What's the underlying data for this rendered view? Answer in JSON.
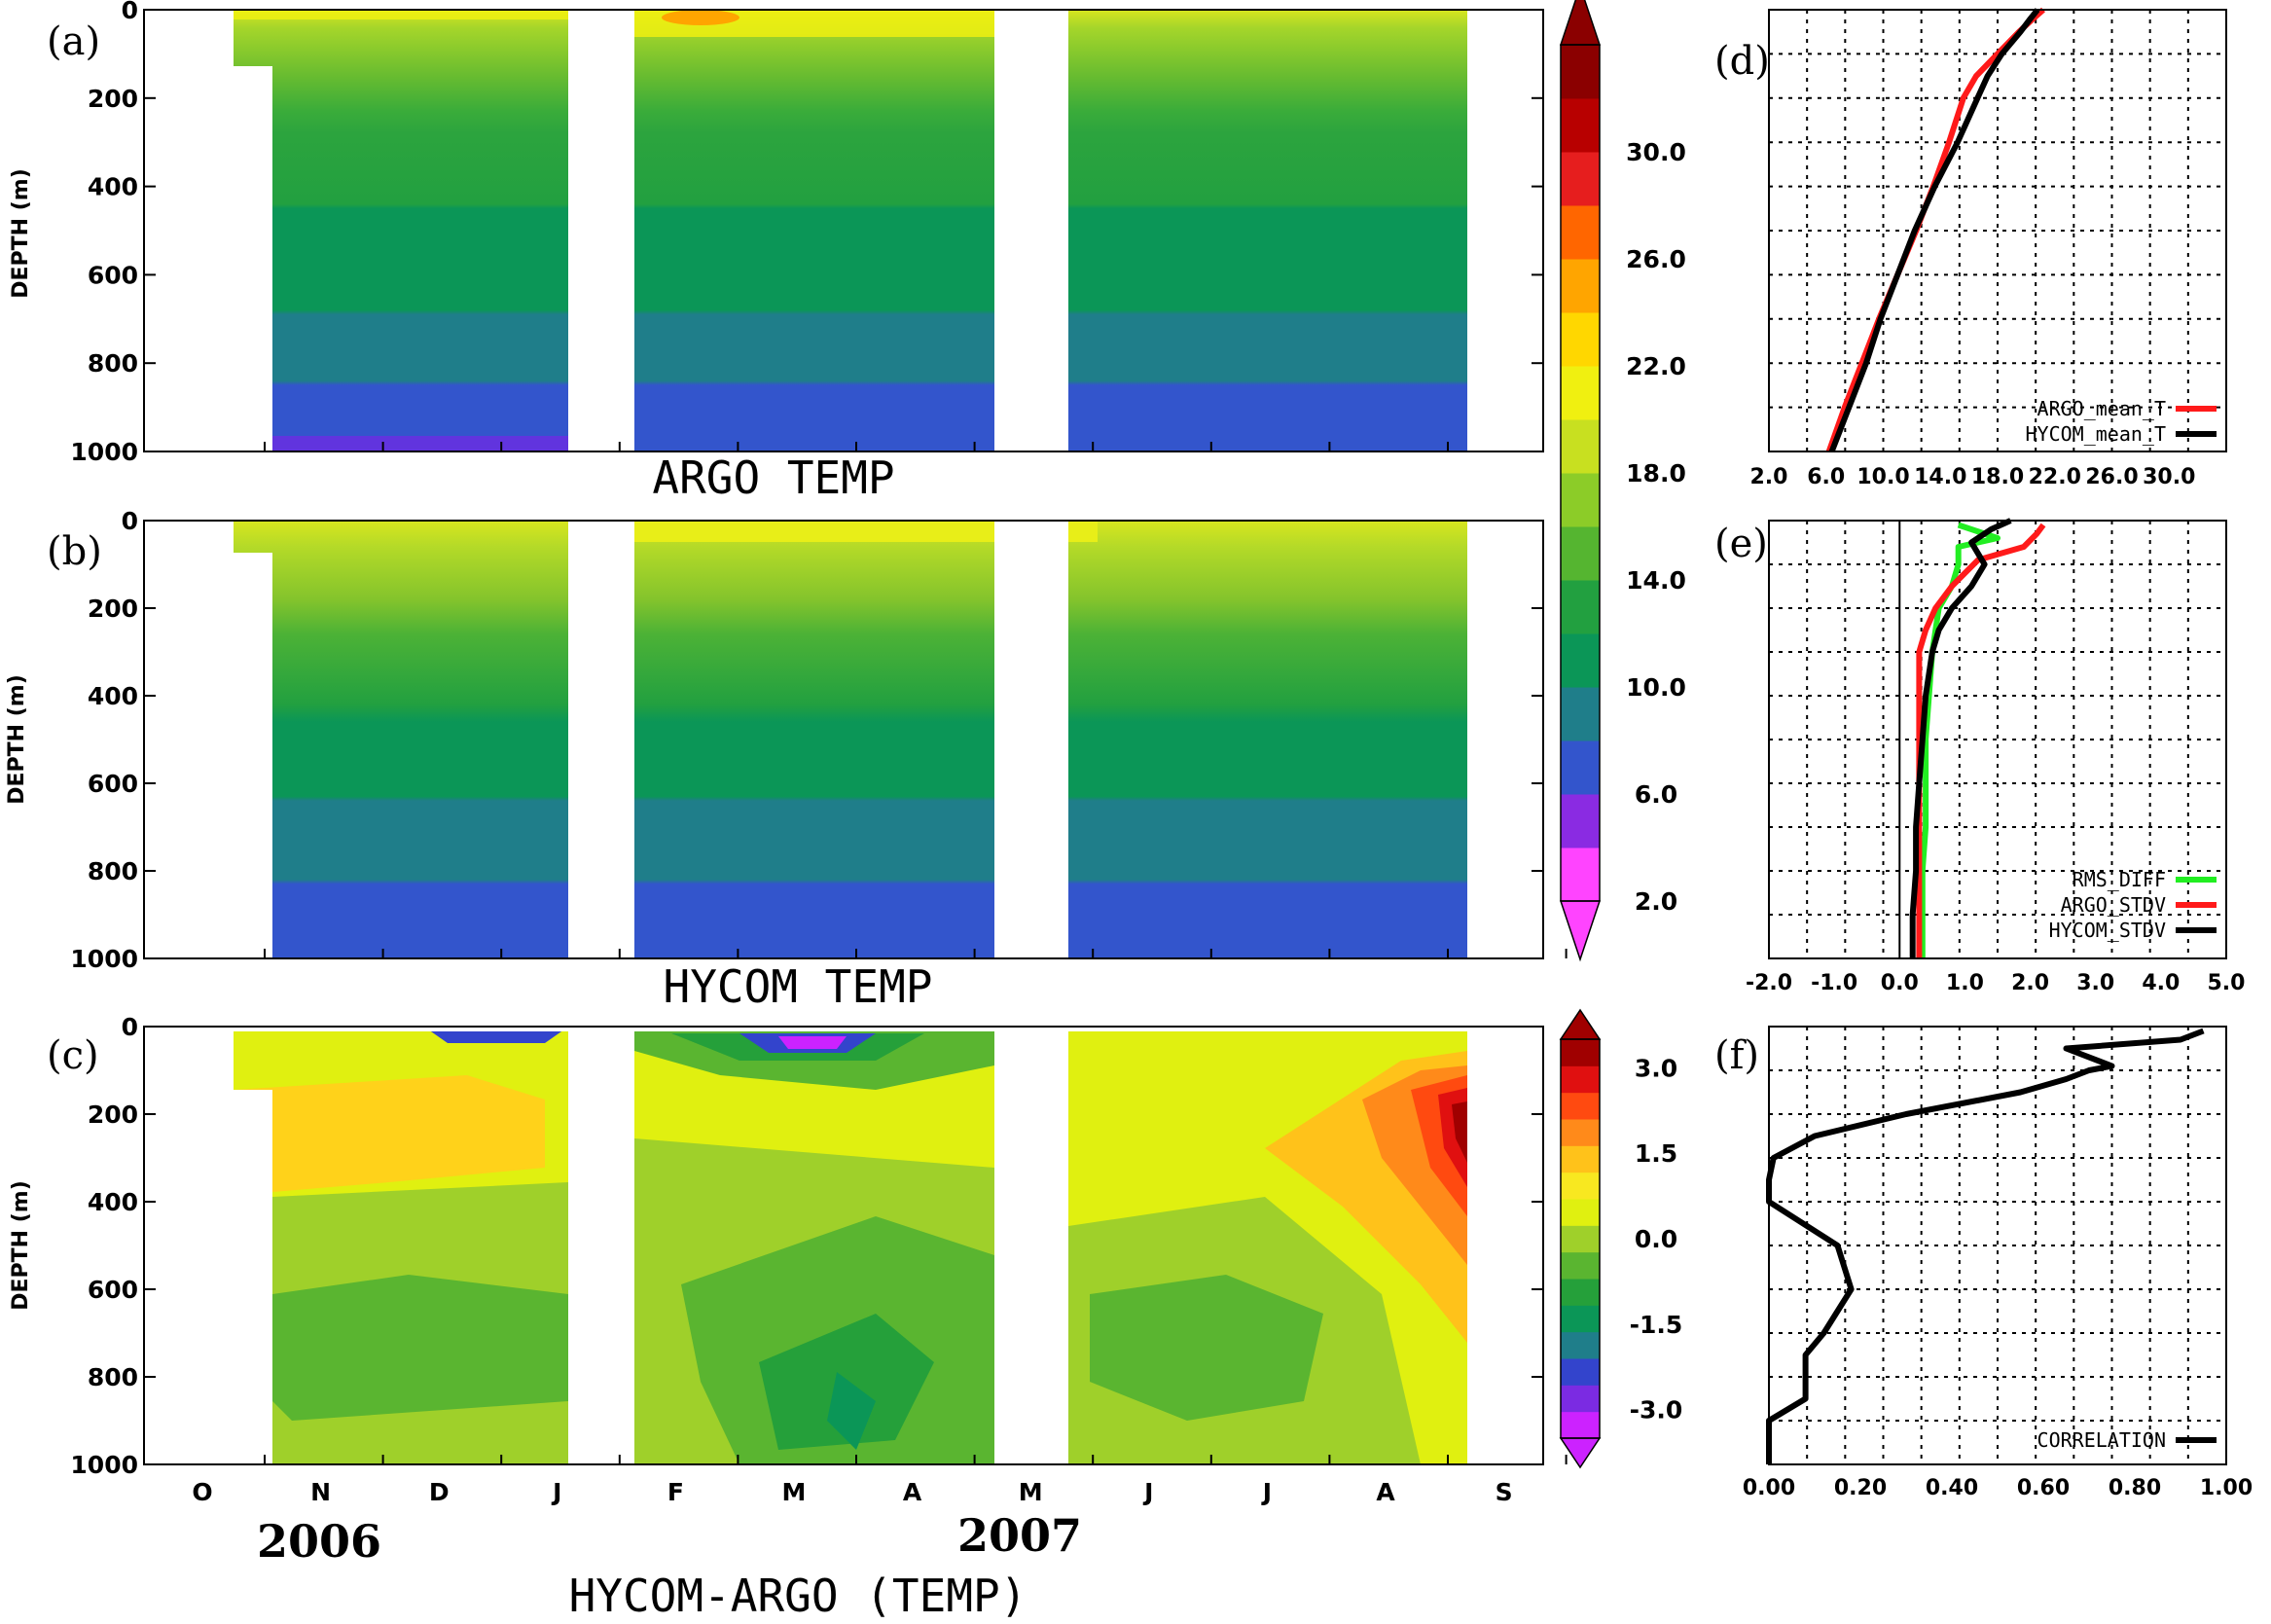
{
  "chart_data": [
    {
      "type": "heatmap",
      "panel": "(a)",
      "title": "ARGO TEMP",
      "ylabel": "DEPTH (m)",
      "ylim": [
        1000,
        0
      ],
      "y_ticks": [
        "0",
        "200",
        "400",
        "600",
        "800",
        "1000"
      ],
      "months": [
        "O",
        "N",
        "D",
        "J",
        "F",
        "M",
        "A",
        "M",
        "J",
        "J",
        "A",
        "S"
      ],
      "x_range": [
        "2006-10",
        "2007-09"
      ],
      "data_gaps": [
        "mid Jan - early Feb 2007",
        "early May - late May 2007"
      ],
      "depths": [
        0,
        100,
        200,
        400,
        450,
        650,
        700,
        850,
        1000
      ],
      "temperature_profile": [
        23,
        20,
        18,
        16,
        14,
        12,
        10,
        8,
        6
      ],
      "colorbar_ticks": [
        "2.0",
        "6.0",
        "10.0",
        "14.0",
        "18.0",
        "22.0",
        "26.0",
        "30.0"
      ],
      "colorbar_range": [
        2,
        34
      ]
    },
    {
      "type": "heatmap",
      "panel": "(b)",
      "title": "HYCOM TEMP",
      "ylabel": "DEPTH (m)",
      "ylim": [
        1000,
        0
      ],
      "y_ticks": [
        "0",
        "200",
        "400",
        "600",
        "800",
        "1000"
      ],
      "depths": [
        0,
        100,
        250,
        450,
        650,
        850,
        1000
      ],
      "temperature_profile": [
        22,
        19,
        17,
        15,
        12,
        9,
        7
      ]
    },
    {
      "type": "heatmap",
      "panel": "(c)",
      "title": "HYCOM-ARGO (TEMP)",
      "ylabel": "DEPTH (m)",
      "ylim": [
        1000,
        0
      ],
      "y_ticks": [
        "0",
        "200",
        "400",
        "600",
        "800",
        "1000"
      ],
      "x_ticks": [
        "O",
        "N",
        "D",
        "J",
        "F",
        "M",
        "A",
        "M",
        "J",
        "J",
        "A",
        "S"
      ],
      "years": [
        "2006",
        "2007"
      ],
      "colorbar_ticks": [
        "-3.0",
        "-1.5",
        "0.0",
        "1.5",
        "3.0"
      ],
      "colorbar_range": [
        -3.5,
        3.5
      ],
      "features": [
        "warm bias up to ~3 at 100-400 m in Aug-Sep 2007",
        "cold bias ~-3 at 50 m in Mar 2007",
        "cold bias ~-1 at 700-900 m in Mar-Apr 2007"
      ]
    },
    {
      "type": "line",
      "panel": "(d)",
      "x_ticks": [
        "2.0",
        "6.0",
        "10.0",
        "14.0",
        "18.0",
        "22.0",
        "26.0",
        "30.0"
      ],
      "xlim": [
        2,
        34
      ],
      "ylim": [
        1000,
        0
      ],
      "grid": true,
      "legend_position": "bottom-right",
      "series": [
        {
          "name": "ARGO_mean_T",
          "color": "#ff1a1a",
          "depth": [
            0,
            20,
            50,
            100,
            150,
            200,
            300,
            400,
            500,
            600,
            700,
            800,
            900,
            1000
          ],
          "values": [
            21.2,
            20.5,
            19.5,
            18.0,
            16.5,
            15.6,
            14.6,
            13.5,
            12.3,
            11.0,
            9.7,
            8.5,
            7.3,
            6.2
          ]
        },
        {
          "name": "HYCOM_mean_T",
          "color": "#000000",
          "depth": [
            0,
            20,
            50,
            100,
            150,
            200,
            300,
            400,
            500,
            600,
            700,
            800,
            900,
            1000
          ],
          "values": [
            20.8,
            20.3,
            19.6,
            18.3,
            17.3,
            16.6,
            15.2,
            13.6,
            12.2,
            11.0,
            9.8,
            8.8,
            7.6,
            6.4
          ]
        }
      ]
    },
    {
      "type": "line",
      "panel": "(e)",
      "x_ticks": [
        "-2.0",
        "-1.0",
        "0.0",
        "1.0",
        "2.0",
        "3.0",
        "4.0",
        "5.0"
      ],
      "xlim": [
        -2,
        5
      ],
      "ylim": [
        1000,
        0
      ],
      "grid": true,
      "legend_position": "bottom-right",
      "series": [
        {
          "name": "RMS_DIFF",
          "color": "#22ee22",
          "depth": [
            10,
            40,
            60,
            100,
            150,
            200,
            300,
            400,
            500,
            600,
            700,
            800,
            900,
            1000
          ],
          "values": [
            0.9,
            1.5,
            0.9,
            0.9,
            0.8,
            0.6,
            0.5,
            0.45,
            0.4,
            0.4,
            0.4,
            0.35,
            0.35,
            0.35
          ]
        },
        {
          "name": "ARGO_STDV",
          "color": "#ff1a1a",
          "depth": [
            10,
            30,
            60,
            90,
            120,
            150,
            200,
            250,
            300,
            400,
            500,
            600,
            700,
            800,
            900,
            1000
          ],
          "values": [
            2.2,
            2.1,
            1.9,
            1.2,
            1.0,
            0.8,
            0.55,
            0.4,
            0.3,
            0.3,
            0.3,
            0.3,
            0.3,
            0.3,
            0.3,
            0.3
          ]
        },
        {
          "name": "HYCOM_STDV",
          "color": "#000000",
          "depth": [
            0,
            20,
            50,
            100,
            150,
            200,
            250,
            300,
            400,
            500,
            600,
            700,
            800,
            900,
            1000
          ],
          "values": [
            1.7,
            1.4,
            1.1,
            1.3,
            1.1,
            0.8,
            0.6,
            0.5,
            0.4,
            0.35,
            0.3,
            0.25,
            0.25,
            0.2,
            0.2
          ]
        }
      ]
    },
    {
      "type": "line",
      "panel": "(f)",
      "x_ticks": [
        "0.00",
        "0.20",
        "0.40",
        "0.60",
        "0.80",
        "1.00"
      ],
      "xlim": [
        0,
        1
      ],
      "ylim": [
        1000,
        0
      ],
      "grid": true,
      "legend_position": "bottom-right",
      "series": [
        {
          "name": "CORRELATION",
          "color": "#000000",
          "depth": [
            10,
            30,
            50,
            90,
            100,
            120,
            150,
            200,
            250,
            300,
            350,
            400,
            500,
            600,
            700,
            750,
            850,
            900,
            1000
          ],
          "values": [
            0.95,
            0.9,
            0.65,
            0.75,
            0.7,
            0.65,
            0.55,
            0.3,
            0.1,
            0.01,
            0.0,
            0.0,
            0.15,
            0.18,
            0.12,
            0.08,
            0.08,
            0.0,
            0.0
          ]
        }
      ]
    }
  ],
  "labels": {
    "a": "(a)",
    "b": "(b)",
    "c": "(c)",
    "d": "(d)",
    "e": "(e)",
    "f": "(f)",
    "title_a": "ARGO TEMP",
    "title_b": "HYCOM TEMP",
    "title_c": "HYCOM-ARGO (TEMP)",
    "ylabel": "DEPTH (m)",
    "ylabel_a": "DEPTH (m)",
    "ylabel_c": "DEPTH (m)",
    "year1": "2006",
    "year2": "2007"
  },
  "colors": {
    "temp_scale": [
      "#ff44ff",
      "#8a2be2",
      "#3355cc",
      "#1f7e8a",
      "#0b9657",
      "#22a040",
      "#55b530",
      "#8ccc28",
      "#c8e020",
      "#f0f010",
      "#ffd700",
      "#ffa500",
      "#ff6600",
      "#e61e1e",
      "#b80000",
      "#8b0000"
    ],
    "diff_scale": [
      "#cc22ff",
      "#7b2be2",
      "#3344cc",
      "#1f7e8a",
      "#0b9657",
      "#25a03a",
      "#5ab530",
      "#9fd02a",
      "#e0f010",
      "#f8e820",
      "#ffc21a",
      "#ff8a1a",
      "#ff4a10",
      "#e01010",
      "#a00000"
    ]
  }
}
